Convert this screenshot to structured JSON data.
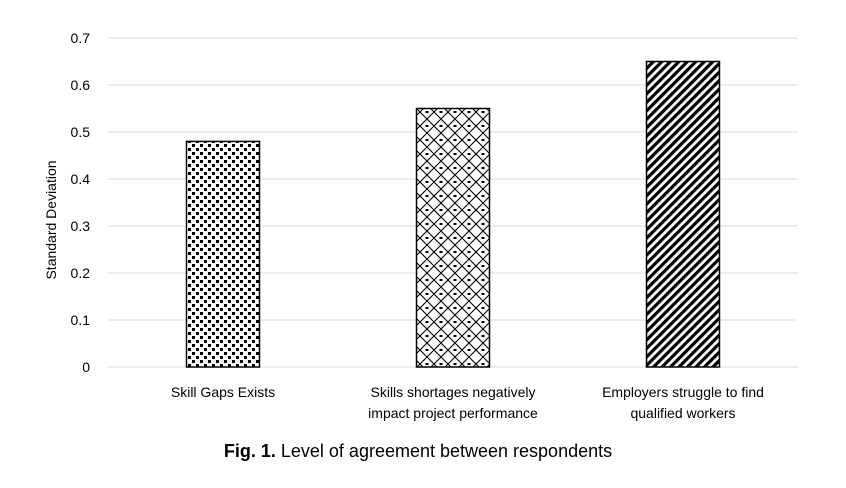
{
  "chart_data": {
    "type": "bar",
    "categories": [
      [
        "Skill Gaps Exists"
      ],
      [
        "Skills shortages negatively",
        "impact project performance"
      ],
      [
        "Employers struggle to find",
        "qualified workers"
      ]
    ],
    "values": [
      0.48,
      0.55,
      0.65
    ],
    "patterns": [
      "dots",
      "diamond-lattice",
      "diagonal-stripes"
    ],
    "ylabel": "Standard Deviation",
    "xlabel": "",
    "ylim": [
      0,
      0.7
    ],
    "yticks": [
      0,
      0.1,
      0.2,
      0.3,
      0.4,
      0.5,
      0.6,
      0.7
    ],
    "ytick_labels": [
      "0",
      "0.1",
      "0.2",
      "0.3",
      "0.4",
      "0.5",
      "0.6",
      "0.7"
    ],
    "grid": true,
    "legend": "none",
    "colors": {
      "bar_stroke": "#000000",
      "grid": "#d9d9d9",
      "text": "#000000"
    }
  },
  "caption": {
    "prefix": "Fig. 1.",
    "text": " Level of agreement between respondents"
  }
}
